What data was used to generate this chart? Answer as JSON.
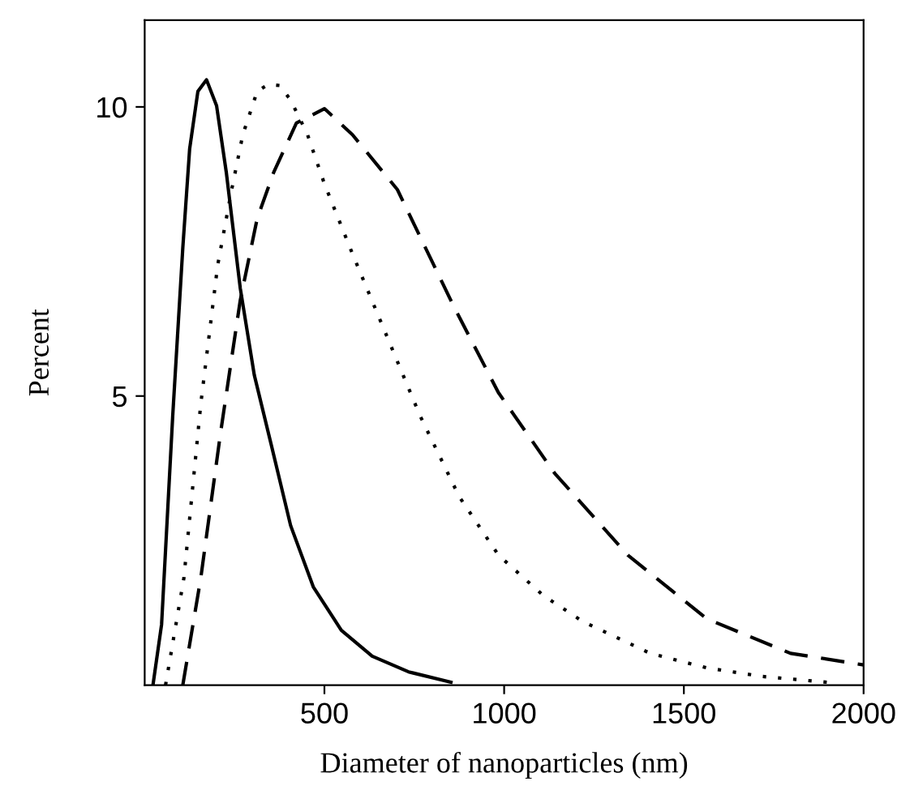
{
  "chart_data": {
    "type": "line",
    "xlabel": "Diameter of nanoparticles (nm)",
    "ylabel": "Percent",
    "xlim": [
      0,
      2000
    ],
    "xticks": [
      500,
      1000,
      1500,
      2000
    ],
    "ylim": [
      0,
      11.5
    ],
    "yticks": [
      5,
      10
    ],
    "grid": false,
    "legend": false,
    "marker": "none",
    "series": [
      {
        "color": "#000000",
        "line_style": "solid",
        "x": [
          23,
          47,
          78,
          106,
          125,
          148,
          172,
          200,
          227,
          266,
          305,
          352,
          406,
          469,
          547,
          633,
          734,
          852
        ],
        "values": [
          0,
          1.05,
          4.66,
          7.56,
          9.27,
          10.27,
          10.47,
          10.02,
          8.87,
          6.86,
          5.36,
          4.16,
          2.76,
          1.7,
          0.95,
          0.5,
          0.23,
          0.05
        ]
      },
      {
        "color": "#000000",
        "line_style": "dotted",
        "x": [
          58,
          109,
          156,
          203,
          242,
          273,
          313,
          344,
          375,
          406,
          453,
          500,
          578,
          672,
          766,
          875,
          984,
          1109,
          1219,
          1406,
          1563,
          1719,
          1898
        ],
        "values": [
          0,
          1.85,
          4.86,
          7.26,
          8.57,
          9.52,
          10.27,
          10.39,
          10.37,
          10.12,
          9.52,
          8.67,
          7.46,
          6.06,
          4.66,
          3.26,
          2.25,
          1.55,
          1.1,
          0.55,
          0.3,
          0.15,
          0.05
        ]
      },
      {
        "color": "#000000",
        "line_style": "dashed",
        "x": [
          106,
          156,
          211,
          266,
          313,
          359,
          422,
          500,
          578,
          703,
          859,
          984,
          1141,
          1344,
          1563,
          1797,
          2000
        ],
        "values": [
          0,
          1.85,
          4.36,
          6.66,
          8.07,
          8.87,
          9.72,
          9.97,
          9.52,
          8.57,
          6.56,
          5.06,
          3.66,
          2.25,
          1.15,
          0.55,
          0.35
        ]
      }
    ]
  }
}
